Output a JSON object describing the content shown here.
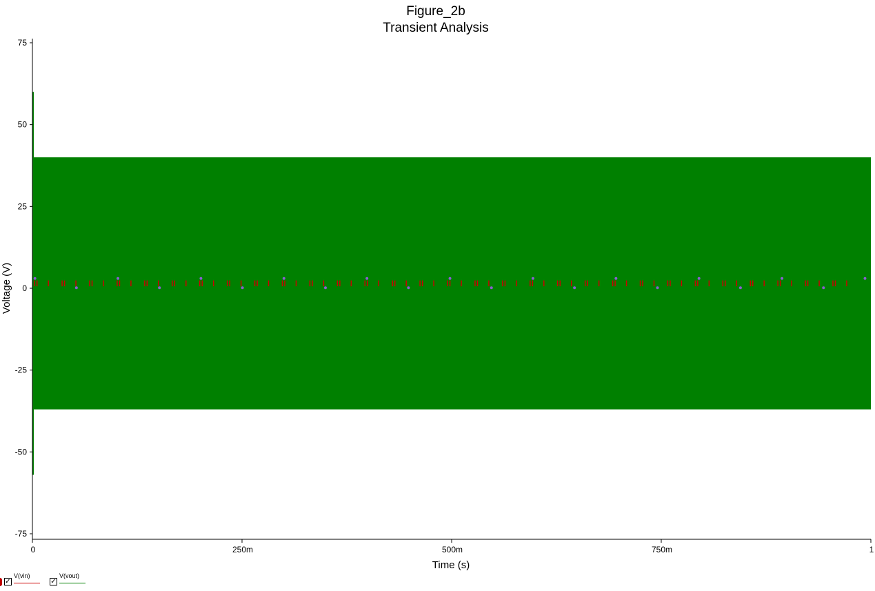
{
  "chart_data": {
    "type": "line",
    "title": "Figure_2b",
    "subtitle": "Transient Analysis",
    "xlabel": "Time (s)",
    "ylabel": "Voltage (V)",
    "xlim": [
      0,
      1
    ],
    "ylim": [
      -75,
      75
    ],
    "x_ticks": [
      0,
      0.25,
      0.5,
      0.75,
      1
    ],
    "x_tick_labels": [
      "0",
      "250m",
      "500m",
      "750m",
      "1"
    ],
    "y_ticks": [
      75,
      50,
      25,
      0,
      -25,
      -50,
      -75
    ],
    "y_tick_labels": [
      "75",
      "50",
      "25",
      "0",
      "-25",
      "-50",
      "-75"
    ],
    "grid": false,
    "series": [
      {
        "name": "V(vout)",
        "color": "#008000",
        "description_values": {
          "initial_spike_max": 60,
          "initial_spike_min": -57,
          "steady_state_max": 40,
          "steady_state_min": -37,
          "t_settle": 0.001
        }
      },
      {
        "name": "V(vin)",
        "color": "#cc0000",
        "baseline": 1.5,
        "amplitude": 1.5
      }
    ],
    "legend": {
      "placement": "bottom-left",
      "items": [
        {
          "label": "V(vin)",
          "checked": true,
          "color": "#cc0000"
        },
        {
          "label": "V(vout)",
          "checked": true,
          "color": "#008000"
        }
      ]
    }
  }
}
